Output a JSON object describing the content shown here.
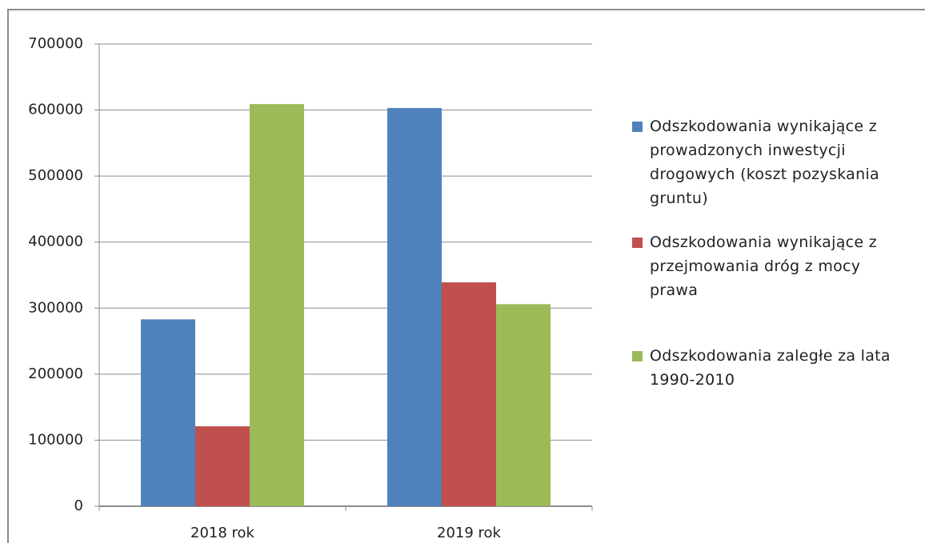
{
  "chart_data": {
    "type": "bar",
    "categories": [
      "2018 rok",
      "2019 rok"
    ],
    "series": [
      {
        "name": "Odszkodowania wynikające z prowadzonych inwestycji drogowych (koszt pozyskania gruntu)",
        "color": "#4f81bd",
        "values": [
          283000,
          603000
        ]
      },
      {
        "name": "Odszkodowania wynikające z przejmowania dróg z mocy prawa",
        "color": "#c0504d",
        "values": [
          121000,
          339000
        ]
      },
      {
        "name": "Odszkodowania zaległe za lata 1990-2010",
        "color": "#9bbb59",
        "values": [
          609000,
          306000
        ]
      }
    ],
    "ylim": [
      0,
      700000
    ],
    "yticks": [
      0,
      100000,
      200000,
      300000,
      400000,
      500000,
      600000,
      700000
    ],
    "grid": true,
    "legend": "right"
  }
}
